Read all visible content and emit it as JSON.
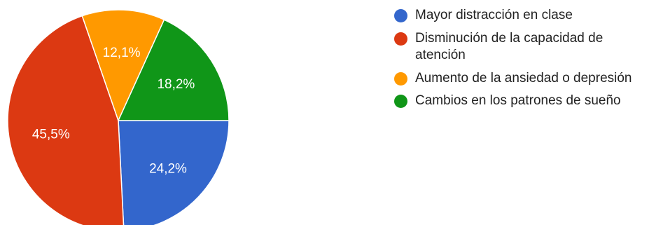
{
  "chart_data": {
    "type": "pie",
    "title": "",
    "categories": [
      "Mayor distracción en clase",
      "Disminución de la capacidad de atención",
      "Aumento de la ansiedad o depresión",
      "Cambios en los patrones de sueño"
    ],
    "values": [
      24.2,
      45.5,
      12.1,
      18.2
    ],
    "labels": [
      "24,2%",
      "45,5%",
      "12,1%",
      "18,2%"
    ],
    "colors": [
      "#3366cc",
      "#dc3912",
      "#ff9900",
      "#109618"
    ],
    "start_angle_deg": 90,
    "direction": "clockwise",
    "legend_position": "right"
  }
}
